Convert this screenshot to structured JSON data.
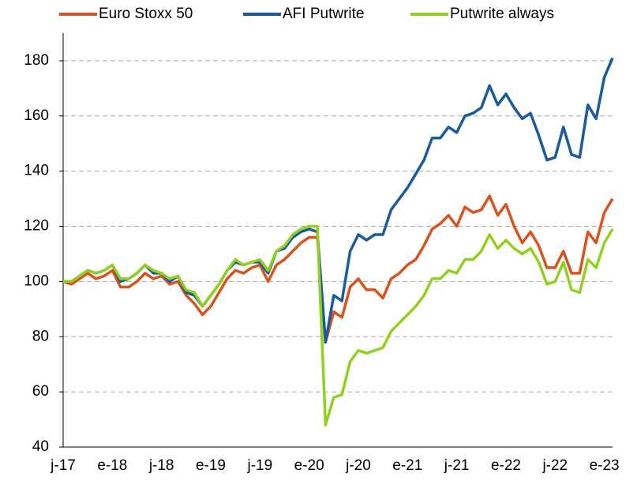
{
  "chart_data": {
    "type": "line",
    "categories": [
      "j-17",
      null,
      null,
      null,
      null,
      null,
      "e-18",
      null,
      null,
      null,
      null,
      null,
      "j-18",
      null,
      null,
      null,
      null,
      null,
      "e-19",
      null,
      null,
      null,
      null,
      null,
      "j-19",
      null,
      null,
      null,
      null,
      null,
      "e-20",
      null,
      null,
      null,
      null,
      null,
      "j-20",
      null,
      null,
      null,
      null,
      null,
      "e-21",
      null,
      null,
      null,
      null,
      null,
      "j-21",
      null,
      null,
      null,
      null,
      null,
      "e-22",
      null,
      null,
      null,
      null,
      null,
      "j-22",
      null,
      null,
      null,
      null,
      null,
      "e-23",
      null
    ],
    "series": [
      {
        "name": "Euro Stoxx 50",
        "color": "#d9531e",
        "values": [
          100,
          99,
          101,
          103,
          101,
          102,
          104,
          98,
          98,
          100,
          103,
          101,
          102,
          99,
          100,
          95,
          92,
          88,
          91,
          96,
          101,
          104,
          103,
          105,
          106,
          100,
          106,
          108,
          111,
          114,
          116,
          116,
          78,
          89,
          87,
          98,
          101,
          97,
          97,
          94,
          101,
          103,
          106,
          108,
          113,
          119,
          121,
          124,
          120,
          127,
          125,
          126,
          131,
          124,
          128,
          120,
          114,
          118,
          113,
          105,
          105,
          111,
          103,
          103,
          118,
          114,
          125,
          130
        ]
      },
      {
        "name": "AFI Putwrite",
        "color": "#1a5b9c",
        "values": [
          100,
          100,
          102,
          104,
          103,
          104,
          106,
          100,
          101,
          103,
          106,
          103,
          103,
          100,
          102,
          96,
          95,
          91,
          95,
          99,
          104,
          107,
          106,
          107,
          107,
          103,
          111,
          112,
          116,
          118,
          119,
          118,
          78,
          95,
          93,
          111,
          117,
          115,
          117,
          117,
          126,
          130,
          134,
          139,
          144,
          152,
          152,
          156,
          154,
          160,
          161,
          163,
          171,
          164,
          168,
          163,
          159,
          161,
          153,
          144,
          145,
          156,
          146,
          145,
          164,
          159,
          174,
          181
        ]
      },
      {
        "name": "Putwrite always",
        "color": "#92d020",
        "values": [
          100,
          100,
          102,
          104,
          103,
          104,
          106,
          101,
          101,
          103,
          106,
          104,
          103,
          101,
          102,
          97,
          96,
          91,
          95,
          99,
          104,
          108,
          106,
          107,
          108,
          104,
          111,
          113,
          117,
          119,
          120,
          120,
          48,
          58,
          59,
          71,
          75,
          74,
          75,
          76,
          82,
          85,
          88,
          91,
          95,
          101,
          101,
          104,
          103,
          108,
          108,
          111,
          117,
          112,
          115,
          112,
          110,
          112,
          107,
          99,
          100,
          107,
          97,
          96,
          108,
          105,
          114,
          119
        ]
      }
    ],
    "ylim": [
      40,
      190
    ],
    "yticks": [
      40,
      60,
      80,
      100,
      120,
      140,
      160,
      180
    ],
    "grid": true
  }
}
